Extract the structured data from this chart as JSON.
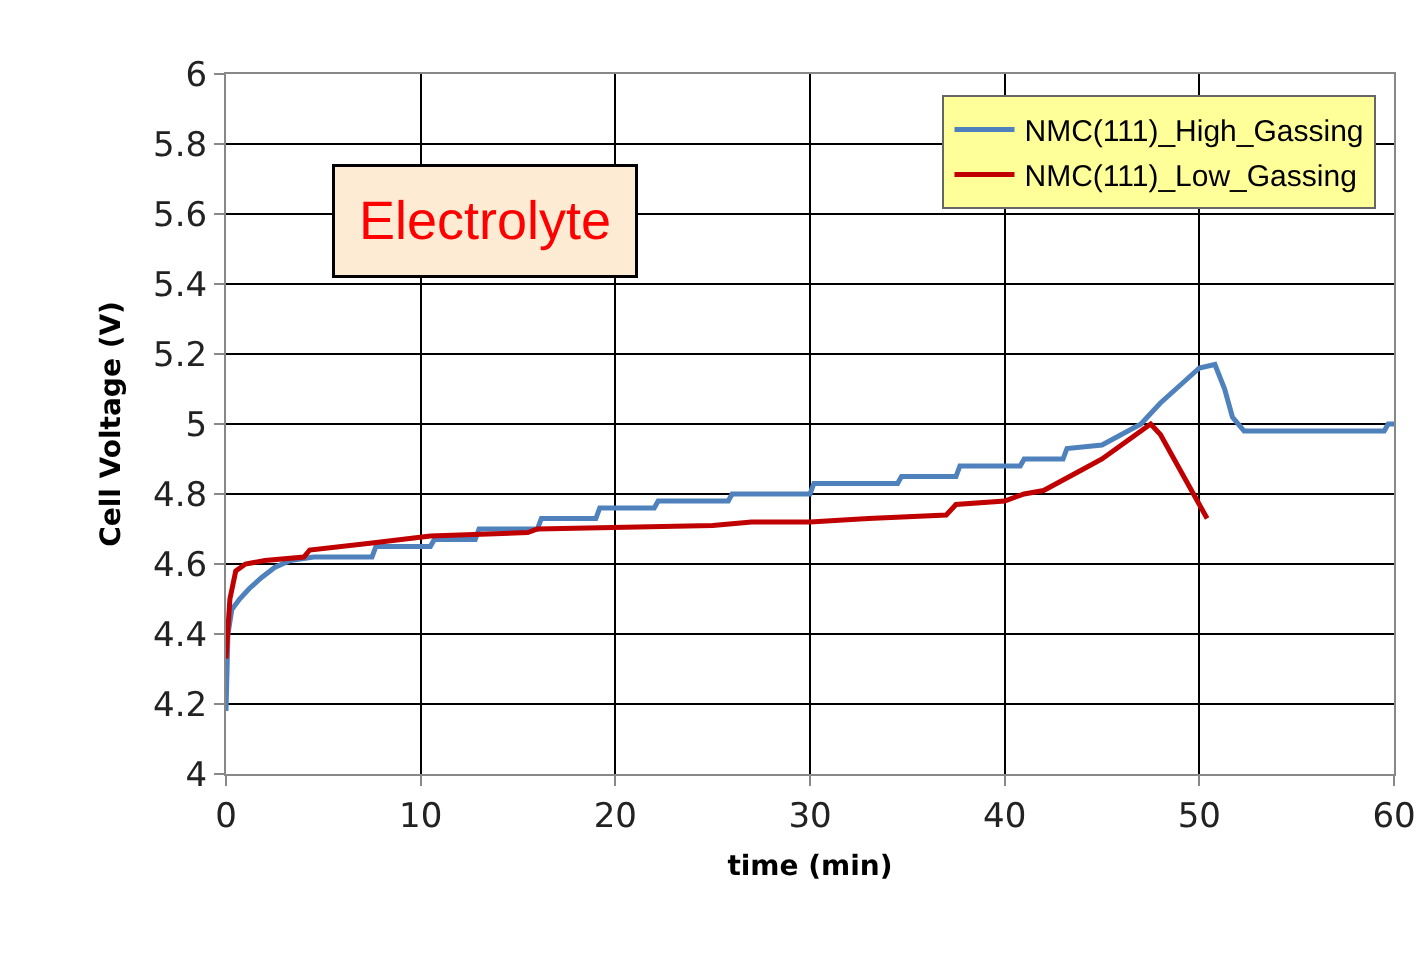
{
  "chart_data": {
    "type": "line",
    "xlabel": "time (min)",
    "ylabel": "Cell Voltage (V)",
    "annotations": [
      "Electrolyte"
    ],
    "xlim": [
      0,
      60
    ],
    "xticks": [
      0,
      10,
      20,
      30,
      40,
      50,
      60
    ],
    "ylim": [
      4,
      6
    ],
    "yticks": [
      4,
      4.2,
      4.4,
      4.6,
      4.8,
      5,
      5.2,
      5.4,
      5.6,
      5.8,
      6
    ],
    "grid": true,
    "legend": "top right",
    "marker": "none",
    "line_style": "solid",
    "series": [
      {
        "name": "NMC(111)_High_Gassing",
        "color": "#4f81bd",
        "x": [
          0,
          0.1,
          0.3,
          0.7,
          1.2,
          1.8,
          2.5,
          3.3,
          4.5,
          7.5,
          7.7,
          10.5,
          10.7,
          12.8,
          13,
          16,
          16.2,
          19,
          19.2,
          22,
          22.2,
          25.8,
          26,
          30,
          30.2,
          34.5,
          34.7,
          37.5,
          37.7,
          40.8,
          41,
          43,
          43.2,
          45,
          46,
          47,
          48,
          49,
          50,
          50.8,
          51.3,
          51.7,
          52.3,
          59.5,
          59.7,
          60
        ],
        "values": [
          4.18,
          4.4,
          4.47,
          4.5,
          4.53,
          4.56,
          4.59,
          4.61,
          4.62,
          4.62,
          4.65,
          4.65,
          4.67,
          4.67,
          4.7,
          4.7,
          4.73,
          4.73,
          4.76,
          4.76,
          4.78,
          4.78,
          4.8,
          4.8,
          4.83,
          4.83,
          4.85,
          4.85,
          4.88,
          4.88,
          4.9,
          4.9,
          4.93,
          4.94,
          4.97,
          5.0,
          5.06,
          5.11,
          5.16,
          5.17,
          5.1,
          5.02,
          4.98,
          4.98,
          5.0,
          5.0
        ]
      },
      {
        "name": "NMC(111)_Low_Gassing",
        "color": "#c00000",
        "x": [
          0,
          0.2,
          0.5,
          1,
          2,
          4,
          4.3,
          7.5,
          10.5,
          15.5,
          16,
          25,
          27,
          30,
          33,
          37,
          37.5,
          40,
          41,
          42,
          43,
          44,
          45,
          46,
          47,
          47.5,
          48,
          49,
          50,
          50.4
        ],
        "values": [
          4.33,
          4.5,
          4.58,
          4.6,
          4.61,
          4.62,
          4.64,
          4.66,
          4.68,
          4.69,
          4.7,
          4.71,
          4.72,
          4.72,
          4.73,
          4.74,
          4.77,
          4.78,
          4.8,
          4.81,
          4.84,
          4.87,
          4.9,
          4.94,
          4.98,
          5.0,
          4.97,
          4.87,
          4.77,
          4.73
        ]
      }
    ]
  }
}
